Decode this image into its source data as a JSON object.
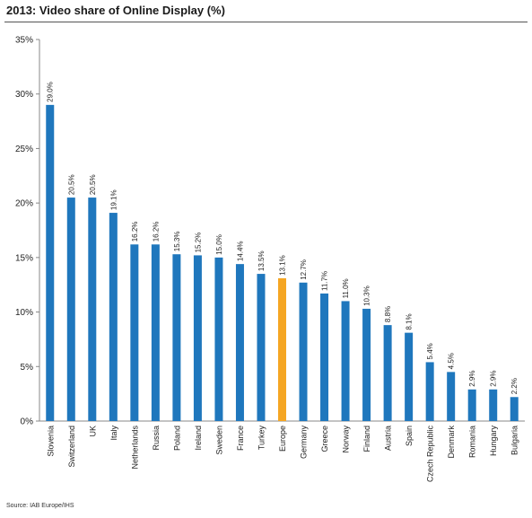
{
  "title": "2013: Video share of Online Display (%)",
  "source": "Source: IAB Europe/IHS",
  "chart_data": {
    "type": "bar",
    "title": "2013: Video share of Online Display (%)",
    "categories": [
      "Slovenia",
      "Switzerland",
      "UK",
      "Italy",
      "Netherlands",
      "Russia",
      "Poland",
      "Ireland",
      "Sweden",
      "France",
      "Turkey",
      "Europe",
      "Germany",
      "Greece",
      "Norway",
      "Finland",
      "Austria",
      "Spain",
      "Czech Republic",
      "Denmark",
      "Romania",
      "Hungary",
      "Bulgaria"
    ],
    "values": [
      29.0,
      20.5,
      20.5,
      19.1,
      16.2,
      16.2,
      15.3,
      15.2,
      15.0,
      14.4,
      13.5,
      13.1,
      12.7,
      11.7,
      11.0,
      10.3,
      8.8,
      8.1,
      5.4,
      4.5,
      2.9,
      2.9,
      2.2
    ],
    "value_labels": [
      "29.0%",
      "20.5%",
      "20.5%",
      "19.1%",
      "16.2%",
      "16.2%",
      "15.3%",
      "15.2%",
      "15.0%",
      "14.4%",
      "13.5%",
      "13.1%",
      "12.7%",
      "11.7%",
      "11.0%",
      "10.3%",
      "8.8%",
      "8.1%",
      "5.4%",
      "4.5%",
      "2.9%",
      "2.9%",
      "2.2%"
    ],
    "yticks": [
      "0%",
      "5%",
      "10%",
      "15%",
      "20%",
      "25%",
      "30%",
      "35%"
    ],
    "ylim": [
      0,
      35
    ],
    "grid": false,
    "colors": {
      "default": "#1f77bd",
      "highlight": "#f5a623",
      "axis": "#888888"
    },
    "highlight_category": "Europe"
  }
}
